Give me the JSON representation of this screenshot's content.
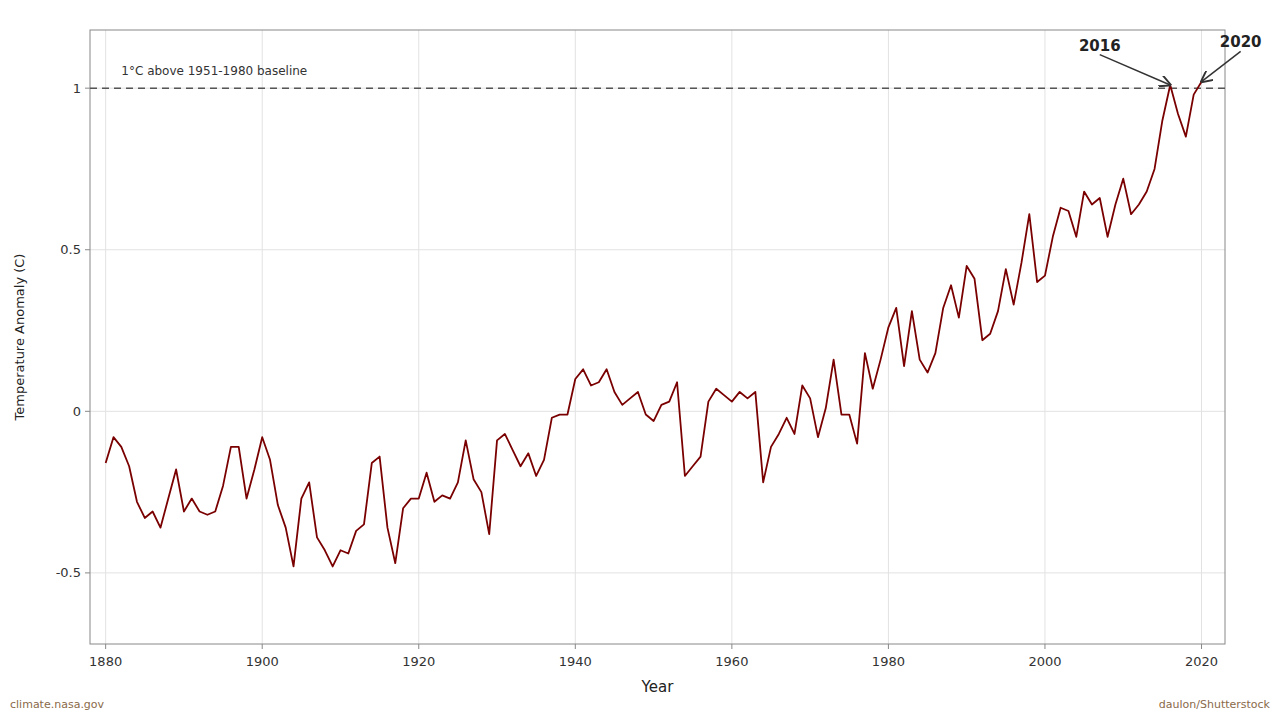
{
  "chart_data": {
    "type": "line",
    "xlabel": "Year",
    "ylabel": "Temperature Anomaly (C)",
    "x": [
      1880,
      1881,
      1882,
      1883,
      1884,
      1885,
      1886,
      1887,
      1888,
      1889,
      1890,
      1891,
      1892,
      1893,
      1894,
      1895,
      1896,
      1897,
      1898,
      1899,
      1900,
      1901,
      1902,
      1903,
      1904,
      1905,
      1906,
      1907,
      1908,
      1909,
      1910,
      1911,
      1912,
      1913,
      1914,
      1915,
      1916,
      1917,
      1918,
      1919,
      1920,
      1921,
      1922,
      1923,
      1924,
      1925,
      1926,
      1927,
      1928,
      1929,
      1930,
      1931,
      1932,
      1933,
      1934,
      1935,
      1936,
      1937,
      1938,
      1939,
      1940,
      1941,
      1942,
      1943,
      1944,
      1945,
      1946,
      1947,
      1948,
      1949,
      1950,
      1951,
      1952,
      1953,
      1954,
      1955,
      1956,
      1957,
      1958,
      1959,
      1960,
      1961,
      1962,
      1963,
      1964,
      1965,
      1966,
      1967,
      1968,
      1969,
      1970,
      1971,
      1972,
      1973,
      1974,
      1975,
      1976,
      1977,
      1978,
      1979,
      1980,
      1981,
      1982,
      1983,
      1984,
      1985,
      1986,
      1987,
      1988,
      1989,
      1990,
      1991,
      1992,
      1993,
      1994,
      1995,
      1996,
      1997,
      1998,
      1999,
      2000,
      2001,
      2002,
      2003,
      2004,
      2005,
      2006,
      2007,
      2008,
      2009,
      2010,
      2011,
      2012,
      2013,
      2014,
      2015,
      2016,
      2017,
      2018,
      2019,
      2020
    ],
    "values": [
      -0.16,
      -0.08,
      -0.11,
      -0.17,
      -0.28,
      -0.33,
      -0.31,
      -0.36,
      -0.27,
      -0.18,
      -0.31,
      -0.27,
      -0.31,
      -0.32,
      -0.31,
      -0.23,
      -0.11,
      -0.11,
      -0.27,
      -0.18,
      -0.08,
      -0.15,
      -0.29,
      -0.36,
      -0.48,
      -0.27,
      -0.22,
      -0.39,
      -0.43,
      -0.48,
      -0.43,
      -0.44,
      -0.37,
      -0.35,
      -0.16,
      -0.14,
      -0.36,
      -0.47,
      -0.3,
      -0.27,
      -0.27,
      -0.19,
      -0.28,
      -0.26,
      -0.27,
      -0.22,
      -0.09,
      -0.21,
      -0.25,
      -0.38,
      -0.09,
      -0.07,
      -0.12,
      -0.17,
      -0.13,
      -0.2,
      -0.15,
      -0.02,
      -0.01,
      -0.01,
      0.1,
      0.13,
      0.08,
      0.09,
      0.13,
      0.06,
      0.02,
      0.04,
      0.06,
      -0.01,
      -0.03,
      0.02,
      0.03,
      0.09,
      -0.2,
      -0.17,
      -0.14,
      0.03,
      0.07,
      0.05,
      0.03,
      0.06,
      0.04,
      0.06,
      -0.22,
      -0.11,
      -0.07,
      -0.02,
      -0.07,
      0.08,
      0.04,
      -0.08,
      0.01,
      0.16,
      -0.01,
      -0.01,
      -0.1,
      0.18,
      0.07,
      0.16,
      0.26,
      0.32,
      0.14,
      0.31,
      0.16,
      0.12,
      0.18,
      0.32,
      0.39,
      0.29,
      0.45,
      0.41,
      0.22,
      0.24,
      0.31,
      0.44,
      0.33,
      0.46,
      0.61,
      0.4,
      0.42,
      0.54,
      0.63,
      0.62,
      0.54,
      0.68,
      0.64,
      0.66,
      0.54,
      0.64,
      0.72,
      0.61,
      0.64,
      0.68,
      0.75,
      0.9,
      1.01,
      0.92,
      0.85,
      0.98,
      1.02
    ],
    "color": "#7A0000",
    "xlim": [
      1878,
      2023
    ],
    "ylim": [
      -0.72,
      1.18
    ],
    "xticks": [
      1880,
      1900,
      1920,
      1940,
      1960,
      1980,
      2000,
      2020
    ],
    "yticks": [
      -0.5,
      0.0,
      0.5,
      1.0
    ],
    "grid": true,
    "hlines": [
      {
        "y": 1.0,
        "line_style": "dashed"
      }
    ],
    "annotations": [
      {
        "text": "1°C above 1951-1980 baseline",
        "x": 1882,
        "y": 1.03
      },
      {
        "text": "2016",
        "x": 2016,
        "y": 1.01
      },
      {
        "text": "2020",
        "x": 2020,
        "y": 1.02
      }
    ],
    "credits": [
      "climate.nasa.gov",
      "daulon/Shutterstock"
    ]
  }
}
